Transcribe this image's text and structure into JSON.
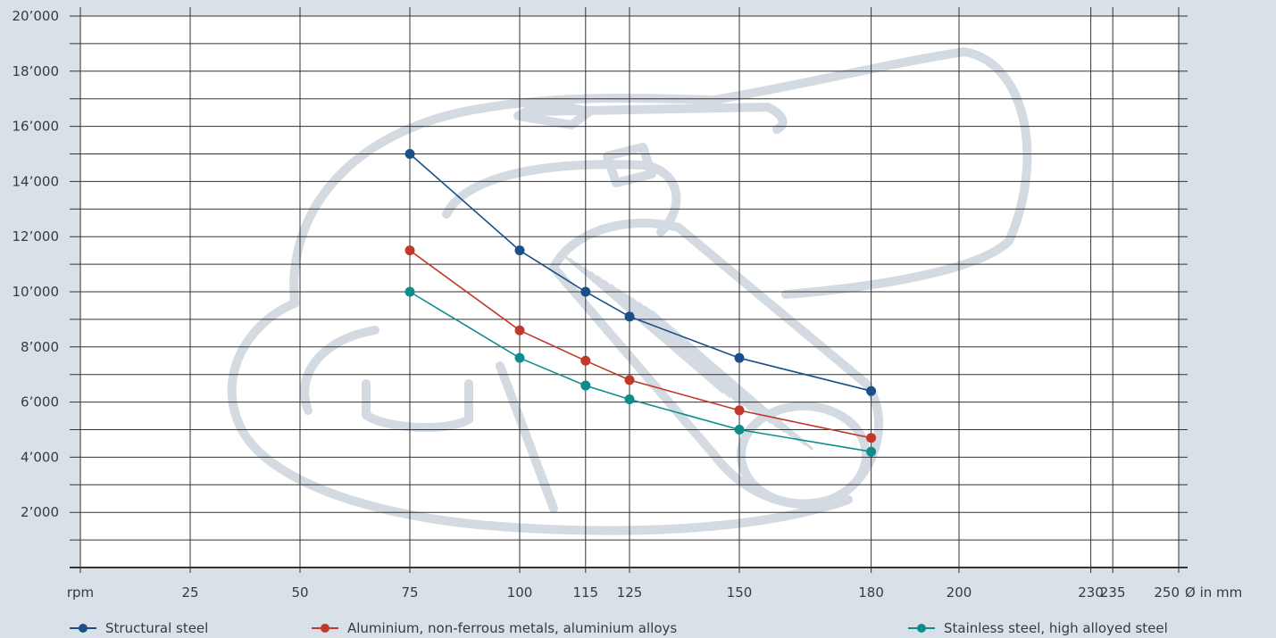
{
  "chart_data": {
    "type": "line",
    "x_ticks": [
      {
        "value": 0,
        "label": "rpm"
      },
      {
        "value": 25,
        "label": "25"
      },
      {
        "value": 50,
        "label": "50"
      },
      {
        "value": 75,
        "label": "75"
      },
      {
        "value": 100,
        "label": "100"
      },
      {
        "value": 115,
        "label": "115"
      },
      {
        "value": 125,
        "label": "125"
      },
      {
        "value": 150,
        "label": "150"
      },
      {
        "value": 180,
        "label": "180"
      },
      {
        "value": 200,
        "label": "200"
      },
      {
        "value": 230,
        "label": "230"
      },
      {
        "value": 235,
        "label": "235"
      },
      {
        "value": 250,
        "label": "250"
      }
    ],
    "xlabel": "Ø in mm",
    "xlim": [
      0,
      250
    ],
    "ylim": [
      0,
      20000
    ],
    "y_ticks": [
      {
        "value": 2000,
        "label": "2’000"
      },
      {
        "value": 4000,
        "label": "4’000"
      },
      {
        "value": 6000,
        "label": "6’000"
      },
      {
        "value": 8000,
        "label": "8’000"
      },
      {
        "value": 10000,
        "label": "10’000"
      },
      {
        "value": 12000,
        "label": "12’000"
      },
      {
        "value": 14000,
        "label": "14’000"
      },
      {
        "value": 16000,
        "label": "16’000"
      },
      {
        "value": 18000,
        "label": "18’000"
      },
      {
        "value": 20000,
        "label": "20’000"
      }
    ],
    "y_minor_step": 1000,
    "grid": true,
    "legend_position": "bottom",
    "series": [
      {
        "name": "Structural steel",
        "color": "#1a4f87",
        "points": [
          [
            75,
            15000
          ],
          [
            100,
            11500
          ],
          [
            115,
            10000
          ],
          [
            125,
            9100
          ],
          [
            150,
            7600
          ],
          [
            180,
            6400
          ]
        ]
      },
      {
        "name": "Aluminium, non-ferrous metals, aluminium alloys",
        "color": "#c0392b",
        "points": [
          [
            75,
            11500
          ],
          [
            100,
            8600
          ],
          [
            115,
            7500
          ],
          [
            125,
            6800
          ],
          [
            150,
            5700
          ],
          [
            180,
            4700
          ]
        ]
      },
      {
        "name": "Stainless steel, high alloyed steel",
        "color": "#0e8c8c",
        "points": [
          [
            75,
            10000
          ],
          [
            100,
            7600
          ],
          [
            115,
            6600
          ],
          [
            125,
            6100
          ],
          [
            150,
            5000
          ],
          [
            180,
            4200
          ]
        ]
      }
    ]
  },
  "colors": {
    "background": "#d9e1e8",
    "plot_background": "#ffffff",
    "grid": "#333333",
    "watermark": "#d6dde4"
  },
  "watermark_icon": "angle-grinder-icon"
}
